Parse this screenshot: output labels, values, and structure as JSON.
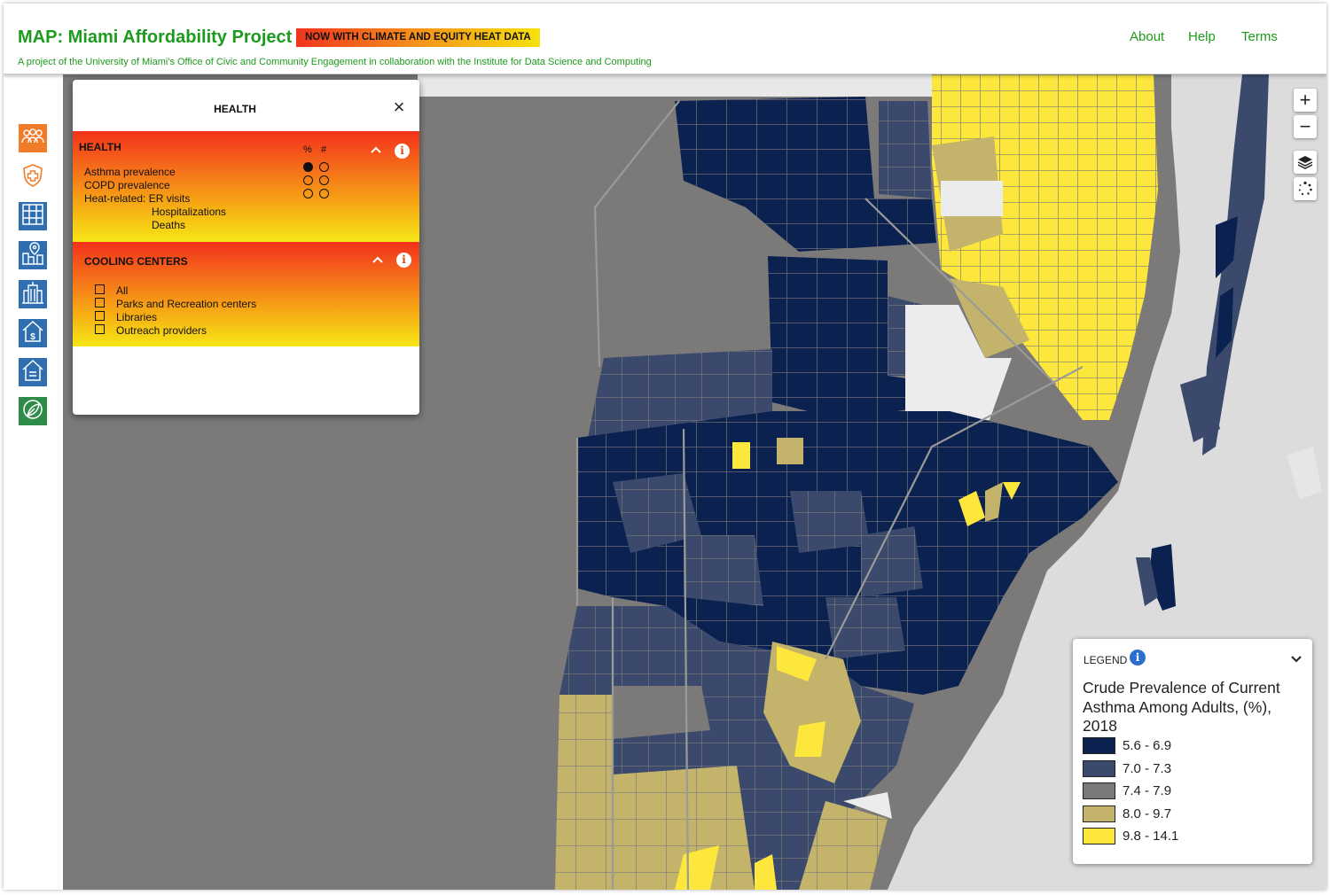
{
  "header": {
    "title": "MAP: Miami Affordability Project",
    "badge": "NOW WITH CLIMATE AND EQUITY HEAT DATA",
    "subtitle": "A project of the University of Miami's Office of Civic and Community Engagement in collaboration with the Institute for Data Science and Computing",
    "nav": [
      "About",
      "Help",
      "Terms"
    ]
  },
  "sidebar": {
    "items": [
      {
        "icon": "people-group-icon",
        "color": "#f07c2a"
      },
      {
        "icon": "health-shield-icon",
        "color": "#f07c2a"
      },
      {
        "icon": "grid-icon",
        "color": "#2f6fb0"
      },
      {
        "icon": "city-pin-icon",
        "color": "#2f6fb0"
      },
      {
        "icon": "building-icon",
        "color": "#2f6fb0"
      },
      {
        "icon": "house-dollar-icon",
        "color": "#2f6fb0"
      },
      {
        "icon": "house-icon",
        "color": "#2f6fb0"
      },
      {
        "icon": "climate-leaf-icon",
        "color": "#2e8b4a"
      }
    ]
  },
  "panel": {
    "title": "HEALTH",
    "health": {
      "label": "HEALTH",
      "col_pct": "%",
      "col_num": "#",
      "items": [
        {
          "label": "Asthma prevalence",
          "pct_selected": true,
          "num_selected": false
        },
        {
          "label": "COPD prevalence",
          "pct_selected": false,
          "num_selected": false
        },
        {
          "label": "Heat-related: ER visits",
          "pct_selected": false,
          "num_selected": false
        }
      ],
      "sub_items": [
        "Hospitalizations",
        "Deaths"
      ]
    },
    "cooling": {
      "label": "COOLING CENTERS",
      "items": [
        "All",
        "Parks and Recreation centers",
        "Libraries",
        "Outreach providers"
      ]
    }
  },
  "map_controls": {
    "zoom_in": "+",
    "zoom_out": "−"
  },
  "legend": {
    "header": "LEGEND",
    "title": "Crude Prevalence of Current Asthma Among Adults, (%), 2018",
    "classes": [
      {
        "label": "5.6 - 6.9",
        "color": "#0b2150"
      },
      {
        "label": "7.0 - 7.3",
        "color": "#3b4a6c"
      },
      {
        "label": "7.4 - 7.9",
        "color": "#7b7a79"
      },
      {
        "label": "8.0 - 9.7",
        "color": "#c3b36b"
      },
      {
        "label": "9.8 - 14.1",
        "color": "#fde73c"
      }
    ]
  },
  "colors": {
    "brand_green": "#1c9b1c",
    "ocean": "#dcdcdc",
    "no_data": "#ececec"
  }
}
